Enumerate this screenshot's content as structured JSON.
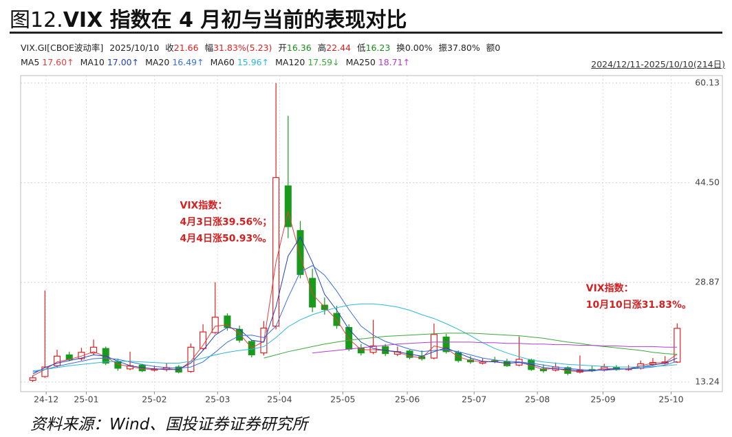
{
  "header": {
    "title_prefix": "图12.",
    "title": "VIX 指数在 4 月初与当前的表现对比",
    "info": [
      {
        "text": "VIX.GI[CBOE波动率]"
      },
      {
        "text": "2025/10/10"
      },
      {
        "label": "收",
        "text": "21.66",
        "color": "#e02020"
      },
      {
        "label": "幅",
        "text": "31.83%(5.23)",
        "color": "#e02020"
      },
      {
        "label": "开",
        "text": "16.36",
        "color": "#1a8a1a"
      },
      {
        "label": "高",
        "text": "22.44",
        "color": "#e02020"
      },
      {
        "label": "低",
        "text": "16.23",
        "color": "#1a8a1a"
      },
      {
        "label": "换",
        "text": "0.00%"
      },
      {
        "label": "振",
        "text": "37.80%"
      },
      {
        "label": "额",
        "text": "0"
      }
    ],
    "range": "2024/12/11-2025/10/10(214日)"
  },
  "chart_data": {
    "type": "candlestick",
    "open": [
      13.5,
      14.1,
      15.8,
      17.5,
      16.9,
      17.8,
      18.5,
      16.4,
      15.3,
      15.9,
      15.1,
      15.2,
      15.6,
      14.9,
      18.5,
      21.0,
      23.6,
      21.5,
      19.6,
      17.8,
      22.0,
      44.0,
      37.0,
      29.5,
      25.3,
      24.0,
      21.8,
      18.6,
      17.9,
      18.8,
      17.6,
      18.1,
      17.2,
      17.0,
      20.3,
      17.8,
      16.7,
      16.2,
      16.6,
      16.4,
      15.9,
      16.7,
      15.3,
      15.1,
      15.5,
      14.8,
      15.2,
      15.1,
      15.5,
      15.2,
      15.4,
      16.0,
      16.2,
      16.36
    ],
    "high": [
      14.3,
      27.6,
      18.3,
      18.0,
      18.6,
      19.9,
      18.8,
      16.9,
      18.0,
      16.1,
      15.8,
      16.2,
      15.9,
      19.3,
      22.3,
      28.9,
      24.0,
      22.1,
      19.8,
      22.8,
      60.13,
      55.0,
      38.5,
      31.0,
      26.5,
      25.2,
      22.3,
      19.2,
      23.0,
      19.2,
      18.8,
      18.3,
      18.2,
      22.4,
      20.8,
      18.2,
      17.3,
      17.0,
      17.2,
      16.9,
      20.4,
      16.9,
      16.0,
      16.3,
      15.7,
      17.4,
      15.8,
      16.1,
      15.9,
      15.9,
      16.6,
      17.0,
      17.3,
      22.44
    ],
    "low": [
      13.24,
      13.9,
      15.5,
      16.5,
      16.6,
      17.5,
      15.9,
      15.0,
      15.1,
      14.8,
      14.9,
      14.9,
      14.6,
      14.7,
      18.2,
      20.8,
      21.3,
      19.4,
      17.1,
      17.4,
      21.5,
      35.8,
      29.5,
      24.2,
      23.8,
      21.6,
      18.1,
      17.4,
      17.6,
      17.3,
      17.3,
      16.8,
      16.6,
      16.8,
      17.7,
      16.3,
      16.1,
      16.0,
      16.2,
      15.6,
      15.7,
      15.0,
      14.7,
      14.9,
      14.3,
      14.6,
      14.8,
      14.9,
      15.0,
      15.0,
      15.2,
      15.8,
      16.0,
      16.23
    ],
    "close": [
      13.9,
      15.6,
      17.3,
      16.8,
      17.9,
      18.7,
      16.2,
      15.4,
      15.8,
      15.0,
      15.3,
      15.5,
      14.8,
      18.7,
      21.1,
      23.4,
      21.8,
      19.8,
      17.5,
      21.7,
      45.3,
      37.6,
      30.1,
      25.0,
      24.6,
      22.1,
      18.4,
      17.8,
      18.9,
      17.7,
      18.0,
      17.1,
      16.9,
      20.7,
      18.0,
      16.6,
      16.4,
      16.4,
      16.5,
      15.8,
      16.8,
      15.2,
      15.0,
      15.6,
      14.6,
      15.1,
      15.0,
      15.6,
      15.2,
      15.3,
      16.1,
      16.3,
      16.4,
      21.66
    ],
    "up_color": "#e02020",
    "down_color": "#1a9a1a",
    "series": [
      {
        "name": "MA5",
        "label": "17.60↑",
        "color": "#e04040",
        "values": [
          14.2,
          15.2,
          16.4,
          16.8,
          17.3,
          18.0,
          17.2,
          16.0,
          15.7,
          15.3,
          15.2,
          15.4,
          15.1,
          16.5,
          19.0,
          22.0,
          22.2,
          20.8,
          18.6,
          19.6,
          32,
          40,
          33,
          27,
          25,
          23,
          20,
          18.3,
          18.3,
          18.2,
          17.9,
          17.3,
          17.0,
          18.9,
          18.5,
          17.2,
          16.6,
          16.4,
          16.5,
          16.1,
          16.4,
          15.8,
          15.2,
          15.4,
          15.0,
          14.9,
          15.0,
          15.4,
          15.3,
          15.3,
          15.8,
          16.2,
          16.3,
          17.6
        ]
      },
      {
        "name": "MA10",
        "label": "17.00↑",
        "color": "#1f3fbf",
        "values": [
          14.5,
          15.5,
          16.2,
          16.6,
          17.0,
          17.5,
          17.3,
          16.5,
          15.8,
          15.5,
          15.3,
          15.2,
          15.2,
          16.2,
          18.2,
          20.6,
          21.8,
          21.5,
          19.8,
          19.5,
          25,
          33,
          36,
          32,
          27,
          24.5,
          21.5,
          19.5,
          18.5,
          18.2,
          18.0,
          17.6,
          17.3,
          18,
          18.6,
          17.8,
          17.0,
          16.5,
          16.4,
          16.2,
          16.3,
          16.0,
          15.5,
          15.3,
          15.2,
          15.0,
          15.0,
          15.2,
          15.3,
          15.3,
          15.6,
          15.9,
          16.2,
          17.0
        ]
      },
      {
        "name": "MA20",
        "label": "16.49↑",
        "color": "#3a6ee0",
        "values": [
          14.8,
          15.2,
          15.7,
          16.1,
          16.5,
          16.9,
          17.0,
          16.8,
          16.4,
          16.0,
          15.7,
          15.5,
          15.4,
          15.6,
          16.4,
          17.9,
          19.5,
          20.5,
          20.6,
          20.2,
          22.0,
          26.5,
          30.5,
          31.5,
          30.0,
          27.5,
          24.6,
          22.0,
          20.6,
          19.6,
          19.0,
          18.4,
          18.0,
          18.2,
          18.3,
          18.0,
          17.5,
          17.0,
          16.7,
          16.5,
          16.4,
          16.2,
          15.9,
          15.6,
          15.4,
          15.2,
          15.1,
          15.1,
          15.2,
          15.3,
          15.4,
          15.6,
          15.9,
          16.49
        ]
      },
      {
        "name": "MA60",
        "label": "15.96↑",
        "color": "#2bb8d8",
        "values": [
          15.0,
          15.2,
          15.5,
          15.8,
          16.0,
          16.2,
          16.4,
          16.5,
          16.5,
          16.4,
          16.3,
          16.2,
          16.2,
          16.5,
          17.0,
          17.5,
          17.9,
          18.2,
          18.4,
          18.8,
          20.2,
          21.9,
          23.0,
          23.8,
          24.4,
          24.9,
          25.3,
          25.5,
          25.5,
          25.3,
          25.0,
          24.5,
          23.8,
          23.2,
          22.4,
          21.5,
          20.5,
          19.4,
          18.5,
          17.8,
          17.2,
          16.7,
          16.4,
          16.2,
          16.0,
          15.9,
          15.8,
          15.7,
          15.6,
          15.6,
          15.6,
          15.7,
          15.8,
          15.96
        ]
      },
      {
        "name": "MA120",
        "label": "17.59↓",
        "color": "#3aa83a",
        "values": [
          null,
          null,
          null,
          null,
          null,
          null,
          null,
          null,
          null,
          null,
          null,
          null,
          null,
          null,
          null,
          null,
          null,
          null,
          null,
          17.0,
          17.5,
          18.0,
          18.4,
          18.8,
          19.2,
          19.5,
          19.8,
          20.0,
          20.2,
          20.4,
          20.5,
          20.6,
          20.7,
          20.8,
          20.9,
          20.9,
          20.9,
          20.8,
          20.7,
          20.6,
          20.5,
          20.3,
          20.1,
          19.8,
          19.5,
          19.3,
          19.0,
          18.8,
          18.6,
          18.4,
          18.2,
          17.9,
          17.7,
          17.59
        ]
      },
      {
        "name": "MA250",
        "label": "18.71↑",
        "color": "#b03cd0",
        "values": [
          null,
          null,
          null,
          null,
          null,
          null,
          null,
          null,
          null,
          null,
          null,
          null,
          null,
          null,
          null,
          null,
          null,
          null,
          null,
          null,
          null,
          null,
          null,
          17.8,
          18.0,
          18.2,
          18.4,
          18.6,
          18.8,
          19.0,
          19.2,
          19.3,
          19.4,
          19.5,
          19.5,
          19.5,
          19.5,
          19.4,
          19.4,
          19.3,
          19.3,
          19.2,
          19.2,
          19.1,
          19.1,
          19.0,
          19.0,
          18.9,
          18.9,
          18.8,
          18.8,
          18.8,
          18.7,
          18.71
        ]
      }
    ],
    "xlim": [
      -1,
      54
    ],
    "xticks": [
      {
        "value": 1.1,
        "label": "24-12"
      },
      {
        "value": 4.4,
        "label": "25-01"
      },
      {
        "value": 10,
        "label": "25-02"
      },
      {
        "value": 15.2,
        "label": "25-03"
      },
      {
        "value": 20.3,
        "label": "25-04"
      },
      {
        "value": 25.5,
        "label": "25-05"
      },
      {
        "value": 30.8,
        "label": "25-06"
      },
      {
        "value": 36.3,
        "label": "25-07"
      },
      {
        "value": 41.5,
        "label": "25-08"
      },
      {
        "value": 46.9,
        "label": "25-09"
      },
      {
        "value": 52.5,
        "label": "25-10"
      }
    ],
    "ylim": [
      11.73,
      61.3
    ],
    "yticks": [
      13.24,
      28.87,
      44.5,
      60.13
    ],
    "ytick_labels": [
      "13.24",
      "28.87",
      "44.50",
      "60.13"
    ],
    "grid": true,
    "annotations": [
      {
        "lines": [
          "VIX指数：",
          "4月3日涨39.56%；",
          "4月4日涨50.93%。"
        ],
        "color": "#d42020",
        "x": 12.1,
        "y": 40.9
      },
      {
        "lines": [
          "VIX指数：",
          "10月10日涨31.83%。"
        ],
        "color": "#d42020",
        "x": 45.5,
        "y": 27.9
      }
    ]
  },
  "source": "资料来源：Wind、国投证券证券研究所"
}
